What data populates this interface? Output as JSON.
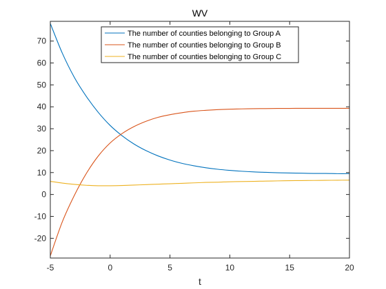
{
  "chart_data": {
    "type": "line",
    "title": "WV",
    "xlabel": "t",
    "ylabel": "",
    "xlim": [
      -5,
      20
    ],
    "ylim": [
      -29,
      79
    ],
    "xticks": [
      -5,
      0,
      5,
      10,
      15,
      20
    ],
    "yticks": [
      -20,
      -10,
      0,
      10,
      20,
      30,
      40,
      50,
      60,
      70
    ],
    "grid": false,
    "legend_position": "top-center",
    "x": [
      -5,
      -4,
      -3,
      -2,
      -1,
      0,
      1,
      2,
      3,
      4,
      5,
      6,
      7,
      8,
      9,
      10,
      11,
      12,
      13,
      14,
      15,
      16,
      17,
      18,
      19,
      20
    ],
    "series": [
      {
        "name": "The number of counties belonging to Group A",
        "color": "#0072BD",
        "values": [
          78,
          64.5,
          53.5,
          44.8,
          37.5,
          31.5,
          26.8,
          23,
          20,
          17.6,
          15.7,
          14.2,
          13.1,
          12.2,
          11.5,
          11,
          10.6,
          10.3,
          10.1,
          9.9,
          9.8,
          9.7,
          9.6,
          9.6,
          9.5,
          9.5
        ]
      },
      {
        "name": "The number of counties belonging to Group B",
        "color": "#D95319",
        "values": [
          -28,
          -12.5,
          -0.5,
          9.5,
          17.5,
          23.5,
          27.8,
          31,
          33.4,
          35.2,
          36.4,
          37.3,
          38,
          38.4,
          38.7,
          38.9,
          39.05,
          39.15,
          39.2,
          39.25,
          39.28,
          39.3,
          39.3,
          39.3,
          39.3,
          39.3
        ]
      },
      {
        "name": "The number of counties belonging to Group C",
        "color": "#EDB120",
        "values": [
          6,
          5.2,
          4.6,
          4.2,
          4,
          4,
          4.1,
          4.3,
          4.5,
          4.7,
          4.9,
          5.1,
          5.3,
          5.5,
          5.6,
          5.8,
          5.9,
          6,
          6.1,
          6.2,
          6.3,
          6.35,
          6.4,
          6.45,
          6.5,
          6.55
        ]
      }
    ]
  }
}
